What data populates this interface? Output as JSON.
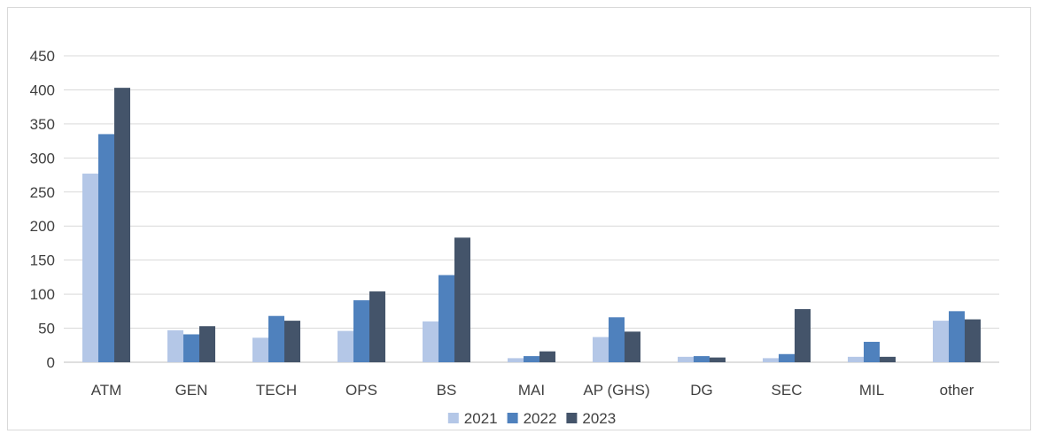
{
  "chart_data": {
    "type": "bar",
    "title": "",
    "xlabel": "",
    "ylabel": "",
    "categories": [
      "ATM",
      "GEN",
      "TECH",
      "OPS",
      "BS",
      "MAI",
      "AP (GHS)",
      "DG",
      "SEC",
      "MIL",
      "other"
    ],
    "series": [
      {
        "name": "2021",
        "color": "#b4c7e7",
        "values": [
          277,
          47,
          36,
          46,
          60,
          6,
          37,
          8,
          6,
          8,
          61
        ]
      },
      {
        "name": "2022",
        "color": "#4f81bd",
        "values": [
          335,
          41,
          68,
          91,
          128,
          9,
          66,
          9,
          12,
          30,
          75
        ]
      },
      {
        "name": "2023",
        "color": "#44546a",
        "values": [
          403,
          53,
          61,
          104,
          183,
          16,
          45,
          7,
          78,
          8,
          63
        ]
      }
    ],
    "ylim": [
      0,
      450
    ],
    "yticks": [
      0,
      50,
      100,
      150,
      200,
      250,
      300,
      350,
      400,
      450
    ],
    "grid": true,
    "legend_position": "bottom"
  }
}
